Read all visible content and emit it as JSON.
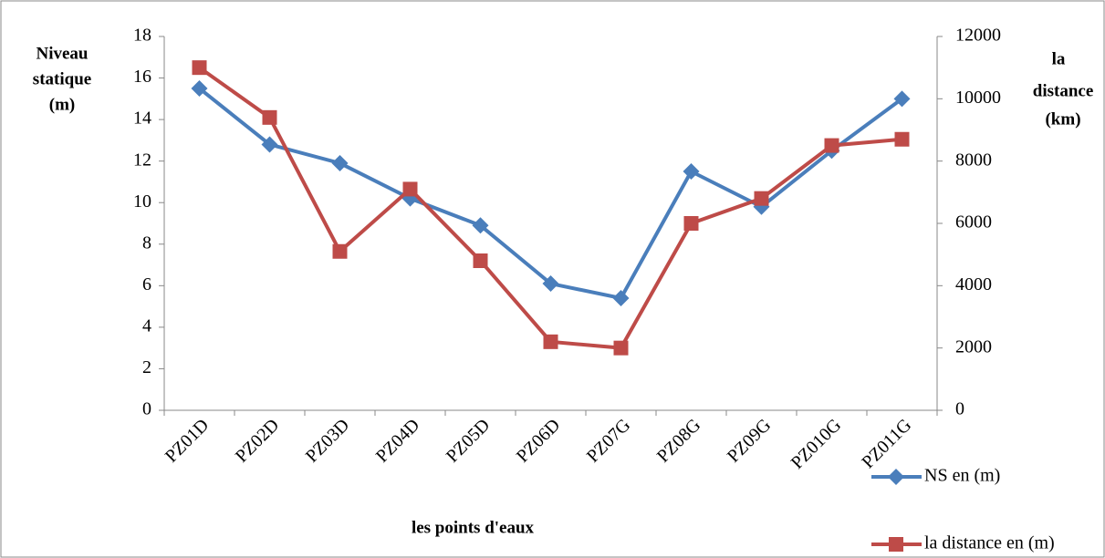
{
  "chart_data": {
    "type": "line",
    "x_label": "les points d'eaux",
    "y_label": [
      "Niveau",
      "statique",
      "(m)"
    ],
    "y2_label": [
      "la",
      "distance",
      "(km)"
    ],
    "categories": [
      "PZ01D",
      "PZ02D",
      "PZ03D",
      "PZ04D",
      "PZ05D",
      "PZ06D",
      "PZ07G",
      "PZ08G",
      "PZ09G",
      "PZ010G",
      "PZ011G"
    ],
    "series": [
      {
        "name": "NS en (m)",
        "color": "#4a7ebb",
        "marker": "diamond",
        "values": [
          15.5,
          12.8,
          11.9,
          10.2,
          8.9,
          6.1,
          5.4,
          11.5,
          9.8,
          12.5,
          15.0
        ]
      },
      {
        "name": "la distance en (m)",
        "color": "#be4b48",
        "marker": "square",
        "axis": "y2",
        "values": [
          11000,
          9400,
          5100,
          7100,
          4800,
          2200,
          2000,
          6000,
          6800,
          8500,
          8700
        ]
      }
    ],
    "ylim": [
      0,
      18
    ],
    "yticks": [
      0,
      2,
      4,
      6,
      8,
      10,
      12,
      14,
      16,
      18
    ],
    "y2lim": [
      0,
      12000
    ],
    "y2ticks": [
      0,
      2000,
      4000,
      6000,
      8000,
      10000,
      12000
    ],
    "grid": false,
    "legend": "lower right"
  }
}
